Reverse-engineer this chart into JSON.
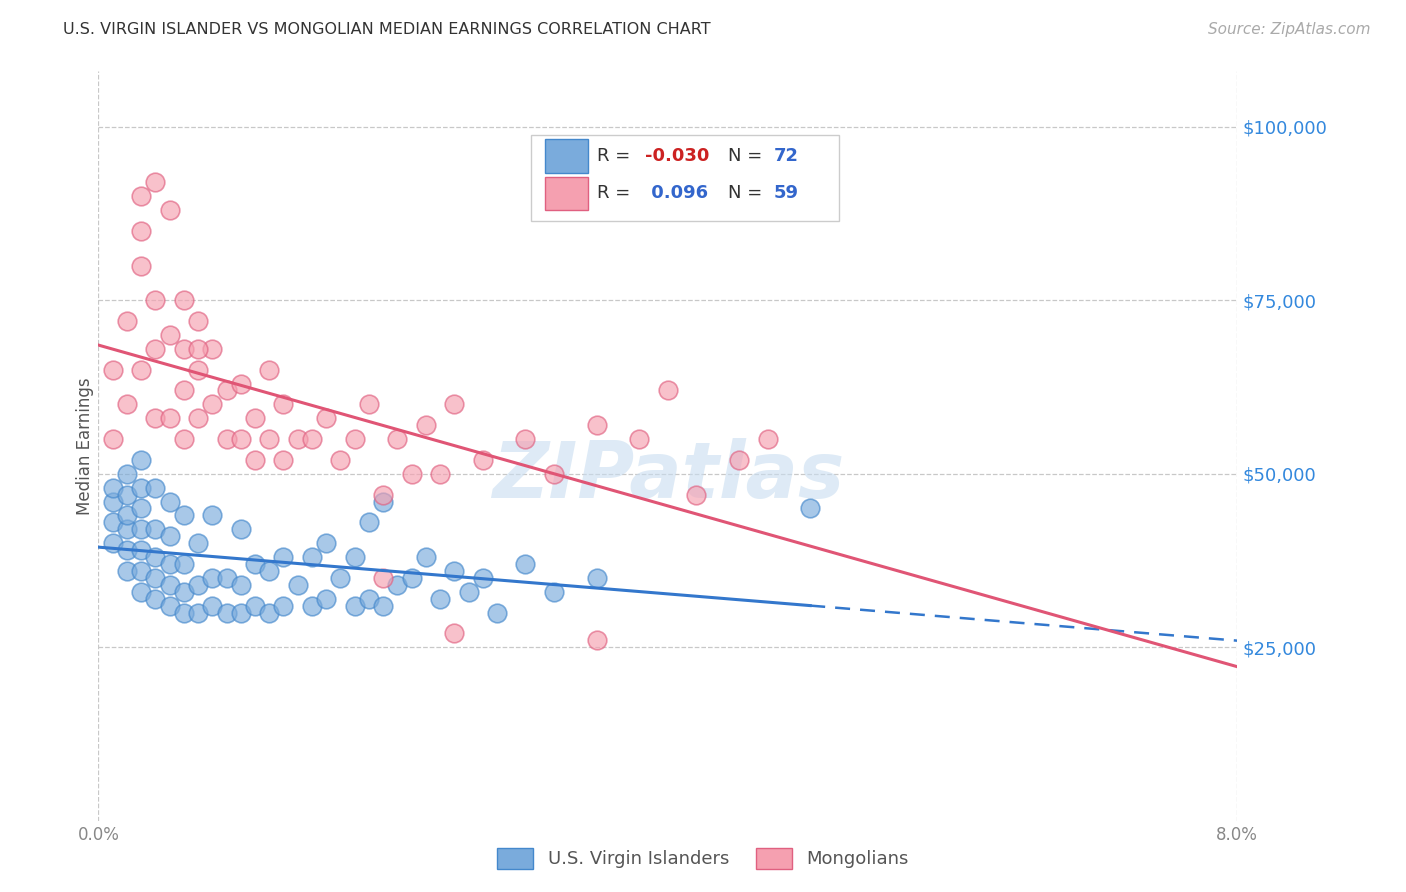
{
  "title": "U.S. VIRGIN ISLANDER VS MONGOLIAN MEDIAN EARNINGS CORRELATION CHART",
  "source": "Source: ZipAtlas.com",
  "ylabel": "Median Earnings",
  "xmin": 0.0,
  "xmax": 0.08,
  "ymin": 0,
  "ymax": 108000,
  "yticks": [
    25000,
    50000,
    75000,
    100000
  ],
  "ytick_labels": [
    "$25,000",
    "$50,000",
    "$75,000",
    "$100,000"
  ],
  "grid_color": "#c8c8c8",
  "background_color": "#ffffff",
  "blue_color": "#7aabdc",
  "blue_edge": "#4488cc",
  "pink_color": "#f5a0b0",
  "pink_edge": "#e06080",
  "blue_line_color": "#3377cc",
  "pink_line_color": "#e05575",
  "watermark": "ZIPatlas",
  "blue_R": "-0.030",
  "blue_N": "72",
  "pink_R": "0.096",
  "pink_N": "59",
  "blue_x": [
    0.001,
    0.001,
    0.001,
    0.001,
    0.002,
    0.002,
    0.002,
    0.002,
    0.002,
    0.002,
    0.003,
    0.003,
    0.003,
    0.003,
    0.003,
    0.003,
    0.003,
    0.004,
    0.004,
    0.004,
    0.004,
    0.004,
    0.005,
    0.005,
    0.005,
    0.005,
    0.005,
    0.006,
    0.006,
    0.006,
    0.006,
    0.007,
    0.007,
    0.007,
    0.008,
    0.008,
    0.008,
    0.009,
    0.009,
    0.01,
    0.01,
    0.01,
    0.011,
    0.011,
    0.012,
    0.012,
    0.013,
    0.013,
    0.014,
    0.015,
    0.015,
    0.016,
    0.016,
    0.017,
    0.018,
    0.018,
    0.019,
    0.019,
    0.02,
    0.02,
    0.021,
    0.022,
    0.023,
    0.024,
    0.025,
    0.026,
    0.027,
    0.028,
    0.03,
    0.032,
    0.035,
    0.05
  ],
  "blue_y": [
    40000,
    43000,
    46000,
    48000,
    36000,
    39000,
    42000,
    44000,
    47000,
    50000,
    33000,
    36000,
    39000,
    42000,
    45000,
    48000,
    52000,
    32000,
    35000,
    38000,
    42000,
    48000,
    31000,
    34000,
    37000,
    41000,
    46000,
    30000,
    33000,
    37000,
    44000,
    30000,
    34000,
    40000,
    31000,
    35000,
    44000,
    30000,
    35000,
    30000,
    34000,
    42000,
    31000,
    37000,
    30000,
    36000,
    31000,
    38000,
    34000,
    31000,
    38000,
    32000,
    40000,
    35000,
    31000,
    38000,
    32000,
    43000,
    31000,
    46000,
    34000,
    35000,
    38000,
    32000,
    36000,
    33000,
    35000,
    30000,
    37000,
    33000,
    35000,
    45000
  ],
  "pink_x": [
    0.001,
    0.001,
    0.002,
    0.002,
    0.003,
    0.003,
    0.003,
    0.004,
    0.004,
    0.004,
    0.005,
    0.005,
    0.006,
    0.006,
    0.006,
    0.007,
    0.007,
    0.007,
    0.008,
    0.008,
    0.009,
    0.009,
    0.01,
    0.01,
    0.011,
    0.011,
    0.012,
    0.012,
    0.013,
    0.013,
    0.014,
    0.015,
    0.016,
    0.017,
    0.018,
    0.019,
    0.02,
    0.021,
    0.022,
    0.023,
    0.024,
    0.025,
    0.027,
    0.03,
    0.032,
    0.035,
    0.038,
    0.04,
    0.042,
    0.045,
    0.047,
    0.003,
    0.004,
    0.005,
    0.006,
    0.007,
    0.02,
    0.025,
    0.035
  ],
  "pink_y": [
    65000,
    55000,
    60000,
    72000,
    85000,
    80000,
    65000,
    68000,
    58000,
    75000,
    58000,
    70000,
    62000,
    68000,
    55000,
    65000,
    58000,
    72000,
    60000,
    68000,
    55000,
    62000,
    55000,
    63000,
    52000,
    58000,
    55000,
    65000,
    52000,
    60000,
    55000,
    55000,
    58000,
    52000,
    55000,
    60000,
    47000,
    55000,
    50000,
    57000,
    50000,
    60000,
    52000,
    55000,
    50000,
    57000,
    55000,
    62000,
    47000,
    52000,
    55000,
    90000,
    92000,
    88000,
    75000,
    68000,
    35000,
    27000,
    26000
  ]
}
